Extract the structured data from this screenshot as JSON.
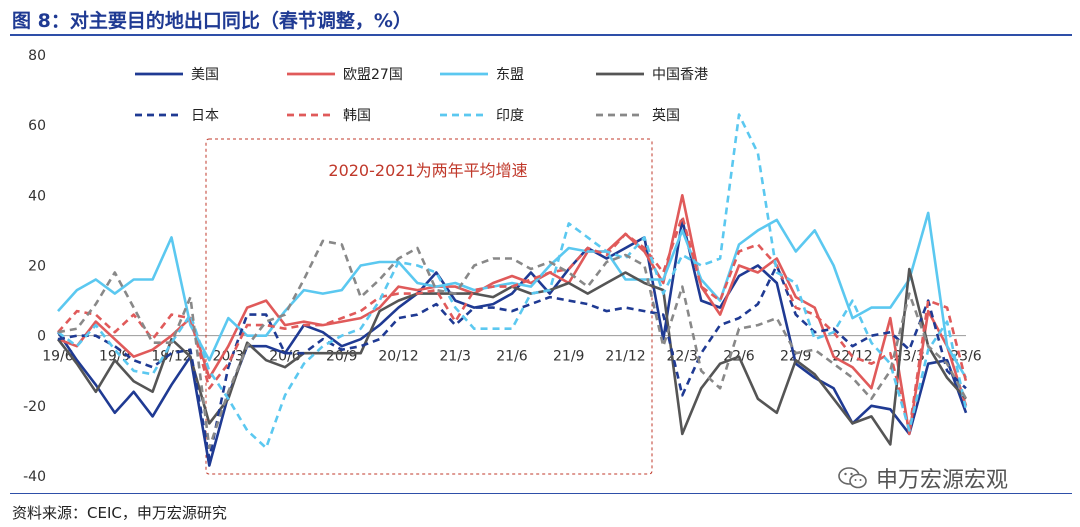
{
  "title": "图 8：对主要目的地出口同比（春节调整，%）",
  "source": "资料来源：CEIC，申万宏源研究",
  "watermark": "申万宏源宏观",
  "chart_data": {
    "type": "line",
    "annotation": "2020-2021为两年平均增速",
    "ylim": [
      -40,
      80
    ],
    "yticks": [
      80,
      60,
      40,
      20,
      0,
      -20,
      -40
    ],
    "x_tick_labels": [
      "19/6",
      "19/9",
      "19/12",
      "20/3",
      "20/6",
      "20/9",
      "20/12",
      "21/3",
      "21/6",
      "21/9",
      "21/12",
      "22/3",
      "22/6",
      "22/9",
      "22/12",
      "23/3",
      "23/6"
    ],
    "x_tick_index": [
      0,
      3,
      6,
      9,
      12,
      15,
      18,
      21,
      24,
      27,
      30,
      33,
      36,
      39,
      42,
      45,
      48
    ],
    "n_points": 49,
    "legend_position": "top",
    "series": [
      {
        "name": "美国",
        "color": "#1f3a93",
        "dash": false,
        "values": [
          1,
          -7,
          -14,
          -22,
          -16,
          -23,
          -14,
          -6,
          -37,
          -17,
          -3,
          -3,
          -5,
          3,
          1,
          -3,
          -1,
          3,
          8,
          12,
          18,
          10,
          8,
          9,
          12,
          18,
          12,
          19,
          25,
          22,
          25,
          28,
          -1,
          33,
          10,
          8,
          17,
          20,
          15,
          -8,
          -12,
          -15,
          -25,
          -20,
          -21,
          -28,
          -8,
          -7,
          -22
        ]
      },
      {
        "name": "欧盟27国",
        "color": "#e05a5a",
        "dash": false,
        "values": [
          -1,
          -3,
          4,
          -1,
          -6,
          -4,
          0,
          5,
          -12,
          -3,
          8,
          10,
          3,
          4,
          3,
          4,
          5,
          8,
          14,
          13,
          14,
          14,
          12,
          15,
          17,
          15,
          18,
          15,
          24,
          24,
          29,
          24,
          15,
          40,
          14,
          6,
          20,
          18,
          22,
          11,
          8,
          -6,
          -9,
          -15,
          5,
          -28,
          7,
          -3,
          -20
        ]
      },
      {
        "name": "东盟",
        "color": "#5bc8f0",
        "dash": false,
        "values": [
          7,
          13,
          16,
          12,
          16,
          16,
          28,
          3,
          -7,
          5,
          0,
          0,
          7,
          13,
          12,
          13,
          20,
          21,
          21,
          15,
          14,
          15,
          13,
          14,
          15,
          14,
          20,
          25,
          24,
          24,
          16,
          16,
          16,
          30,
          16,
          10,
          26,
          30,
          33,
          24,
          30,
          20,
          5,
          8,
          8,
          16,
          35,
          -3,
          -12
        ]
      },
      {
        "name": "中国香港",
        "color": "#555555",
        "dash": false,
        "values": [
          -1,
          -8,
          -16,
          -7,
          -13,
          -16,
          -1,
          -6,
          -25,
          -18,
          -2,
          -7,
          -9,
          -5,
          -5,
          -5,
          -5,
          7,
          10,
          12,
          12,
          12,
          12,
          11,
          14,
          12,
          13,
          15,
          12,
          15,
          18,
          15,
          13,
          -28,
          -15,
          -8,
          -6,
          -18,
          -22,
          -7,
          -11,
          -18,
          -25,
          -23,
          -31,
          19,
          -3,
          -12,
          -18
        ]
      },
      {
        "name": "日本",
        "color": "#1f3a93",
        "dash": true,
        "values": [
          -1,
          0,
          0,
          -3,
          -7,
          -9,
          -5,
          -4,
          -35,
          -9,
          6,
          6,
          -5,
          -5,
          -1,
          -4,
          -3,
          -1,
          5,
          6,
          9,
          3,
          8,
          8,
          7,
          9,
          11,
          10,
          9,
          7,
          8,
          7,
          6,
          -17,
          -5,
          3,
          5,
          9,
          20,
          6,
          1,
          2,
          -3,
          0,
          1,
          -4,
          10,
          -10,
          -15
        ]
      },
      {
        "name": "韩国",
        "color": "#e05a5a",
        "dash": true,
        "values": [
          1,
          7,
          6,
          1,
          6,
          -1,
          6,
          5,
          -15,
          -8,
          3,
          3,
          2,
          3,
          3,
          5,
          7,
          11,
          12,
          12,
          13,
          4,
          13,
          14,
          14,
          16,
          18,
          19,
          25,
          23,
          29,
          25,
          18,
          34,
          14,
          10,
          24,
          26,
          20,
          8,
          6,
          1,
          -6,
          -8,
          -5,
          -27,
          10,
          8,
          -13
        ]
      },
      {
        "name": "印度",
        "color": "#5bc8f0",
        "dash": true,
        "values": [
          1,
          -3,
          3,
          -4,
          -10,
          -11,
          -2,
          6,
          -10,
          -18,
          -27,
          -32,
          -17,
          -8,
          -3,
          0,
          2,
          10,
          21,
          20,
          18,
          8,
          2,
          2,
          2,
          12,
          13,
          32,
          28,
          24,
          22,
          28,
          12,
          23,
          20,
          22,
          63,
          52,
          18,
          15,
          -1,
          1,
          10,
          -2,
          -8,
          -27,
          -4,
          4,
          -21
        ]
      },
      {
        "name": "英国",
        "color": "#888888",
        "dash": true,
        "values": [
          1,
          2,
          9,
          18,
          8,
          -2,
          -2,
          11,
          -32,
          -16,
          -3,
          4,
          6,
          16,
          27,
          26,
          11,
          16,
          22,
          25,
          13,
          12,
          20,
          22,
          22,
          19,
          21,
          18,
          14,
          21,
          23,
          20,
          -3,
          14,
          -10,
          -15,
          2,
          3,
          5,
          -5,
          -4,
          -8,
          -12,
          -18,
          -10,
          12,
          -3,
          -8,
          -18
        ]
      }
    ]
  }
}
